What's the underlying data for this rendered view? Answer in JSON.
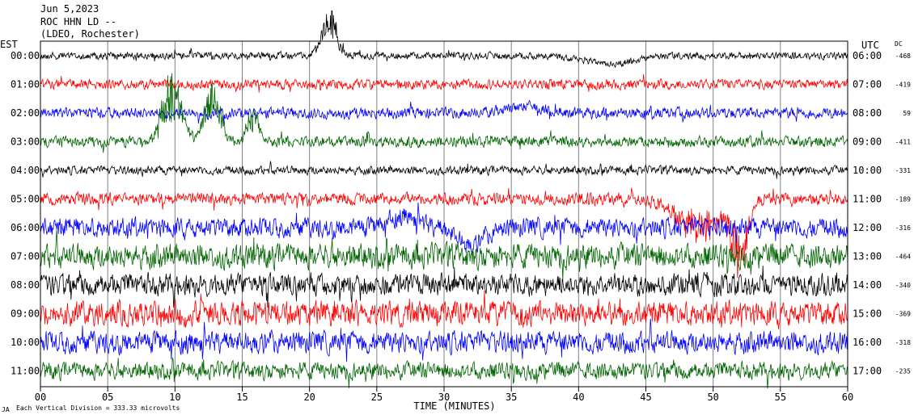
{
  "header": {
    "date": "Jun 5,2023",
    "station": "ROC HHN LD --",
    "location": "(LDEO, Rochester)",
    "left_tz": "EST",
    "right_tz": "UTC",
    "dc_label": "DC"
  },
  "footer": {
    "scale_note": "Each Vertical Division =  333.33 microvolts",
    "corner_mark": "JA"
  },
  "chart_data": {
    "type": "line",
    "title": "ROC HHN LD --",
    "xlabel": "TIME (MINUTES)",
    "ylabel": "",
    "xlim": [
      0,
      60
    ],
    "x_ticks": [
      "00",
      "05",
      "10",
      "15",
      "20",
      "25",
      "30",
      "35",
      "40",
      "45",
      "50",
      "55",
      "60"
    ],
    "grid": "vertical lines every 5 minutes",
    "trace_colors": [
      "#000000",
      "#ff0000",
      "#0000ff",
      "#006400"
    ],
    "rows": [
      {
        "est": "00:00",
        "utc": "06:00",
        "dc": "-468",
        "color": "#000000",
        "noise": 6,
        "events": [
          {
            "t": 21.5,
            "amp": -40,
            "width": 0.8
          },
          {
            "t": 42.5,
            "amp": 10,
            "width": 2.5
          }
        ]
      },
      {
        "est": "01:00",
        "utc": "07:00",
        "dc": "-419",
        "color": "#ff0000",
        "noise": 8,
        "events": []
      },
      {
        "est": "02:00",
        "utc": "08:00",
        "dc": "59",
        "color": "#0000ff",
        "noise": 9,
        "events": [
          {
            "t": 36,
            "amp": -8,
            "width": 2
          }
        ]
      },
      {
        "est": "03:00",
        "utc": "09:00",
        "dc": "-411",
        "color": "#006400",
        "noise": 9,
        "events": [
          {
            "t": 9.8,
            "amp": -60,
            "width": 1.0
          },
          {
            "t": 12.8,
            "amp": -50,
            "width": 0.8
          },
          {
            "t": 15.8,
            "amp": -30,
            "width": 0.6
          }
        ]
      },
      {
        "est": "04:00",
        "utc": "10:00",
        "dc": "-331",
        "color": "#000000",
        "noise": 7,
        "events": []
      },
      {
        "est": "05:00",
        "utc": "11:00",
        "dc": "-189",
        "color": "#ff0000",
        "noise": 10,
        "events": [
          {
            "t": 49,
            "amp": 35,
            "width": 2.5
          },
          {
            "t": 52,
            "amp": 60,
            "width": 0.8
          }
        ]
      },
      {
        "est": "06:00",
        "utc": "12:00",
        "dc": "-316",
        "color": "#0000ff",
        "noise": 16,
        "events": [
          {
            "t": 27,
            "amp": -15,
            "width": 1.5
          },
          {
            "t": 32,
            "amp": 20,
            "width": 1.5
          }
        ]
      },
      {
        "est": "07:00",
        "utc": "13:00",
        "dc": "-464",
        "color": "#006400",
        "noise": 20,
        "events": []
      },
      {
        "est": "08:00",
        "utc": "14:00",
        "dc": "-340",
        "color": "#000000",
        "noise": 18,
        "events": []
      },
      {
        "est": "09:00",
        "utc": "15:00",
        "dc": "-369",
        "color": "#ff0000",
        "noise": 20,
        "events": []
      },
      {
        "est": "10:00",
        "utc": "16:00",
        "dc": "-318",
        "color": "#0000ff",
        "noise": 18,
        "events": []
      },
      {
        "est": "11:00",
        "utc": "17:00",
        "dc": "-235",
        "color": "#006400",
        "noise": 14,
        "events": []
      }
    ]
  }
}
